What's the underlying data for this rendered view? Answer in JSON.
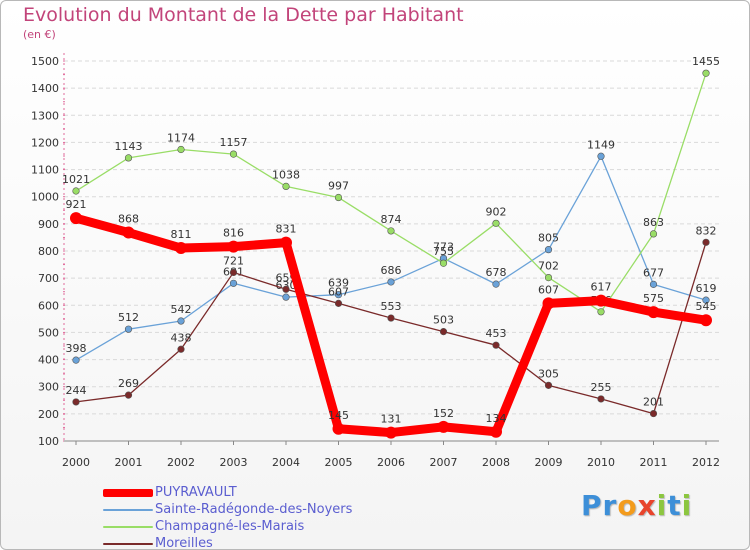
{
  "header": {
    "title": "Evolution du Montant de la Dette par Habitant",
    "subtitle": "(en €)"
  },
  "logo": {
    "letters": [
      "P",
      "r",
      "o",
      "x",
      "i",
      "t",
      "i"
    ],
    "colors": [
      "#3d8fd8",
      "#3d8fd8",
      "#f39b1c",
      "#e8442c",
      "#8cc63f",
      "#3d8fd8",
      "#8cc63f"
    ]
  },
  "chart_data": {
    "type": "line",
    "title": "Evolution du Montant de la Dette par Habitant",
    "subtitle": "(en €)",
    "xlabel": "",
    "ylabel": "",
    "x": [
      "2000",
      "2001",
      "2002",
      "2003",
      "2004",
      "2005",
      "2006",
      "2007",
      "2008",
      "2009",
      "2010",
      "2011",
      "2012"
    ],
    "ylim": [
      100,
      1500
    ],
    "yticks": [
      100,
      200,
      300,
      400,
      500,
      600,
      700,
      800,
      900,
      1000,
      1100,
      1200,
      1300,
      1400,
      1500
    ],
    "grid": "horizontal dashed",
    "legend_position": "bottom-left",
    "series": [
      {
        "name": "PUYRAVAULT",
        "color": "#ff0000",
        "emphasis": true,
        "values": [
          921,
          868,
          811,
          816,
          831,
          145,
          131,
          152,
          134,
          607,
          617,
          575,
          545
        ]
      },
      {
        "name": "Sainte-Radégonde-des-Noyers",
        "color": "#6aa2d8",
        "values": [
          398,
          512,
          542,
          681,
          630,
          639,
          686,
          773,
          678,
          805,
          1149,
          677,
          619
        ]
      },
      {
        "name": "Champagné-les-Marais",
        "color": "#99dd66",
        "values": [
          1021,
          1143,
          1174,
          1157,
          1038,
          997,
          874,
          755,
          902,
          702,
          576,
          863,
          1455
        ]
      },
      {
        "name": "Moreilles",
        "color": "#7a2a2a",
        "values": [
          244,
          269,
          438,
          721,
          659,
          607,
          553,
          503,
          453,
          305,
          255,
          201,
          832
        ]
      }
    ]
  }
}
